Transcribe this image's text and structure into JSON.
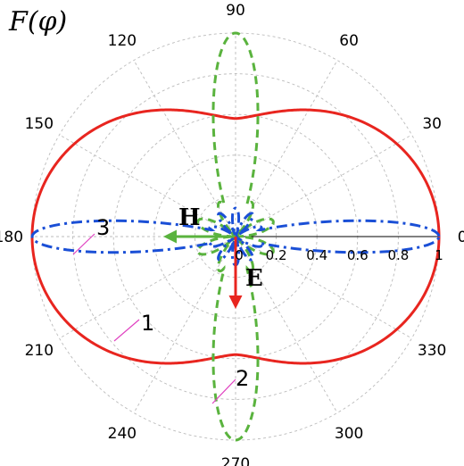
{
  "chart_data": {
    "type": "polar-line",
    "title": "F(φ)",
    "angle_ticks": [
      "0",
      "30",
      "60",
      "90",
      "120",
      "150",
      "180",
      "210",
      "240",
      "270",
      "300",
      "330"
    ],
    "radial_ticks": [
      "0",
      "0.2",
      "0.4",
      "0.6",
      "0.8",
      "1"
    ],
    "rlim": [
      0,
      1
    ],
    "grid": true,
    "series": [
      {
        "name": "1",
        "style": "solid",
        "color": "#e8251f",
        "model": "F = |cosφ| · 0.32 + 0.68 approx; max 1 at 0/180, min ~0.6 at 90/270"
      },
      {
        "name": "2",
        "style": "dashed",
        "color": "#5ab33e",
        "model": "main lobes to 1 along 90/270, small side lobes ~0.2"
      },
      {
        "name": "3",
        "style": "dashdot",
        "color": "#1a4fd6",
        "model": "main lobes to 1 along 0/180, small side lobes ~0.15"
      }
    ],
    "annotations": [
      {
        "label": "H",
        "color": "#5ab33e"
      },
      {
        "label": "E",
        "color": "#e8251f"
      }
    ]
  }
}
